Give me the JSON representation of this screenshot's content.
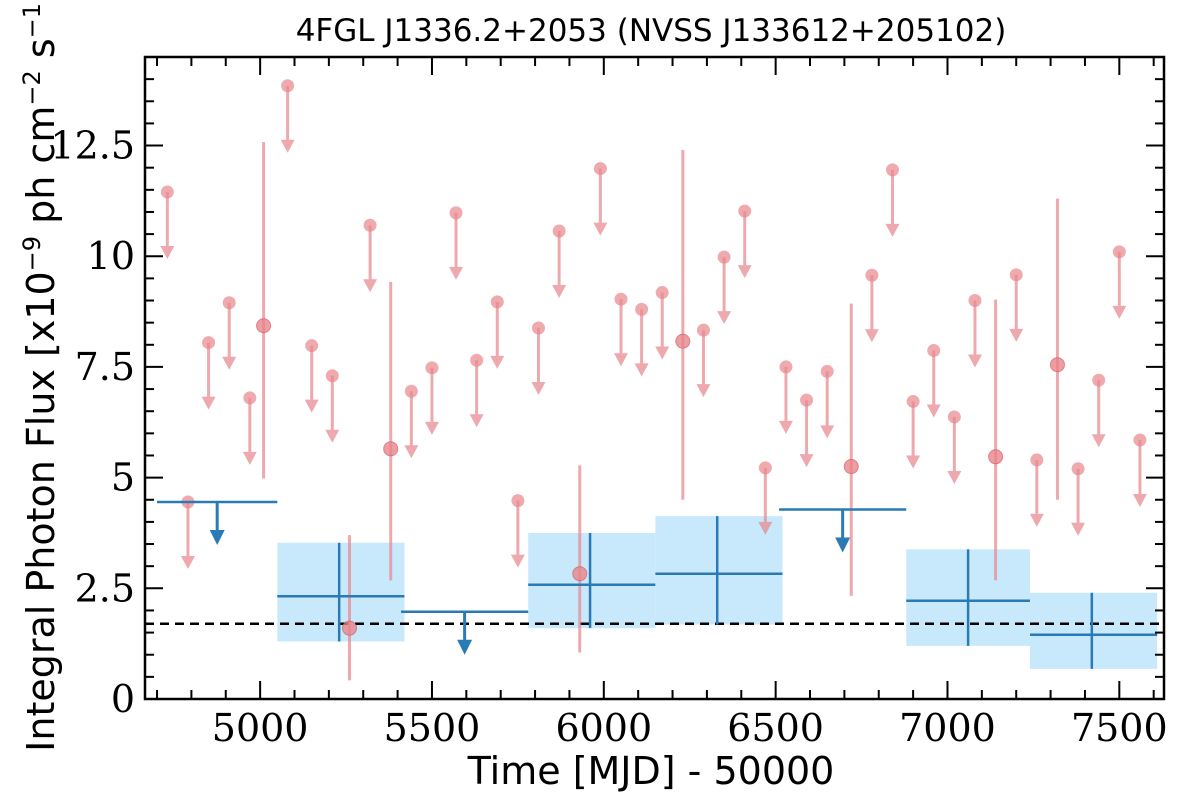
{
  "chart_data": {
    "type": "scatter",
    "title": "4FGL J1336.2+2053 (NVSS J133612+205102)",
    "xlabel": "Time [MJD] - 50000",
    "ylabel_parts": [
      "Integral Photon Flux [x10",
      "−9",
      " ph cm",
      "−2",
      " s",
      "−1",
      "]"
    ],
    "xlim": [
      4665,
      7630
    ],
    "ylim": [
      0,
      14.5
    ],
    "x_ticks": [
      5000,
      5500,
      6000,
      6500,
      7000,
      7500
    ],
    "x_tick_labels": [
      "5000",
      "5500",
      "6000",
      "6500",
      "7000",
      "7500"
    ],
    "y_ticks": [
      0,
      2.5,
      5,
      7.5,
      10,
      12.5
    ],
    "y_tick_labels": [
      "0",
      "2.5",
      "5",
      "7.5",
      "10",
      "12.5"
    ],
    "reference_line": 1.7,
    "colors": {
      "short_bins": "#e8868c",
      "long_bins": "#2a7ab5",
      "long_bins_band": "#c8e9fb",
      "reference_line": "#000000"
    },
    "short_bins": {
      "upper_limits": [
        {
          "x": 4730,
          "y": 11.45
        },
        {
          "x": 4790,
          "y": 4.45
        },
        {
          "x": 4850,
          "y": 8.05
        },
        {
          "x": 4910,
          "y": 8.95
        },
        {
          "x": 4970,
          "y": 6.8
        },
        {
          "x": 5080,
          "y": 13.85
        },
        {
          "x": 5150,
          "y": 7.98
        },
        {
          "x": 5210,
          "y": 7.3
        },
        {
          "x": 5320,
          "y": 10.7
        },
        {
          "x": 5440,
          "y": 6.95
        },
        {
          "x": 5500,
          "y": 7.48
        },
        {
          "x": 5570,
          "y": 10.98
        },
        {
          "x": 5630,
          "y": 7.65
        },
        {
          "x": 5690,
          "y": 8.97
        },
        {
          "x": 5750,
          "y": 4.48
        },
        {
          "x": 5810,
          "y": 8.38
        },
        {
          "x": 5870,
          "y": 10.57
        },
        {
          "x": 5990,
          "y": 11.98
        },
        {
          "x": 6050,
          "y": 9.03
        },
        {
          "x": 6110,
          "y": 8.8
        },
        {
          "x": 6170,
          "y": 9.18
        },
        {
          "x": 6290,
          "y": 8.33
        },
        {
          "x": 6350,
          "y": 9.98
        },
        {
          "x": 6410,
          "y": 11.02
        },
        {
          "x": 6470,
          "y": 5.22
        },
        {
          "x": 6530,
          "y": 7.5
        },
        {
          "x": 6590,
          "y": 6.75
        },
        {
          "x": 6650,
          "y": 7.4
        },
        {
          "x": 6780,
          "y": 9.57
        },
        {
          "x": 6840,
          "y": 11.95
        },
        {
          "x": 6900,
          "y": 6.72
        },
        {
          "x": 6960,
          "y": 7.87
        },
        {
          "x": 7020,
          "y": 6.37
        },
        {
          "x": 7080,
          "y": 9.0
        },
        {
          "x": 7200,
          "y": 9.58
        },
        {
          "x": 7260,
          "y": 5.4
        },
        {
          "x": 7380,
          "y": 5.2
        },
        {
          "x": 7440,
          "y": 7.2
        },
        {
          "x": 7500,
          "y": 10.1
        },
        {
          "x": 7560,
          "y": 5.85
        }
      ],
      "detections": [
        {
          "x": 5010,
          "y": 8.43,
          "y_low": 4.98,
          "y_high": 12.58
        },
        {
          "x": 5260,
          "y": 1.6,
          "y_low": 0.42,
          "y_high": 3.7
        },
        {
          "x": 5380,
          "y": 5.65,
          "y_low": 2.68,
          "y_high": 9.42
        },
        {
          "x": 5930,
          "y": 2.83,
          "y_low": 1.05,
          "y_high": 5.28
        },
        {
          "x": 6230,
          "y": 8.08,
          "y_low": 4.5,
          "y_high": 12.4
        },
        {
          "x": 6720,
          "y": 5.25,
          "y_low": 2.33,
          "y_high": 8.93
        },
        {
          "x": 7140,
          "y": 5.47,
          "y_low": 2.68,
          "y_high": 9.02
        },
        {
          "x": 7320,
          "y": 7.55,
          "y_low": 4.5,
          "y_high": 11.3
        }
      ]
    },
    "long_bins": {
      "upper_limits": [
        {
          "x_start": 4700,
          "x_end": 5050,
          "y": 4.45
        },
        {
          "x_start": 5410,
          "x_end": 5780,
          "y": 1.97
        },
        {
          "x_start": 6510,
          "x_end": 6880,
          "y": 4.28
        }
      ],
      "detections": [
        {
          "x_start": 5050,
          "x_end": 5420,
          "x": 5230,
          "y": 2.32,
          "y_low": 1.3,
          "y_high": 3.53
        },
        {
          "x_start": 5780,
          "x_end": 6150,
          "x": 5960,
          "y": 2.58,
          "y_low": 1.6,
          "y_high": 3.75
        },
        {
          "x_start": 6150,
          "x_end": 6520,
          "x": 6330,
          "y": 2.83,
          "y_low": 1.68,
          "y_high": 4.13
        },
        {
          "x_start": 6880,
          "x_end": 7240,
          "x": 7060,
          "y": 2.22,
          "y_low": 1.2,
          "y_high": 3.38
        },
        {
          "x_start": 7240,
          "x_end": 7610,
          "x": 7420,
          "y": 1.45,
          "y_low": 0.68,
          "y_high": 2.4
        }
      ]
    }
  }
}
